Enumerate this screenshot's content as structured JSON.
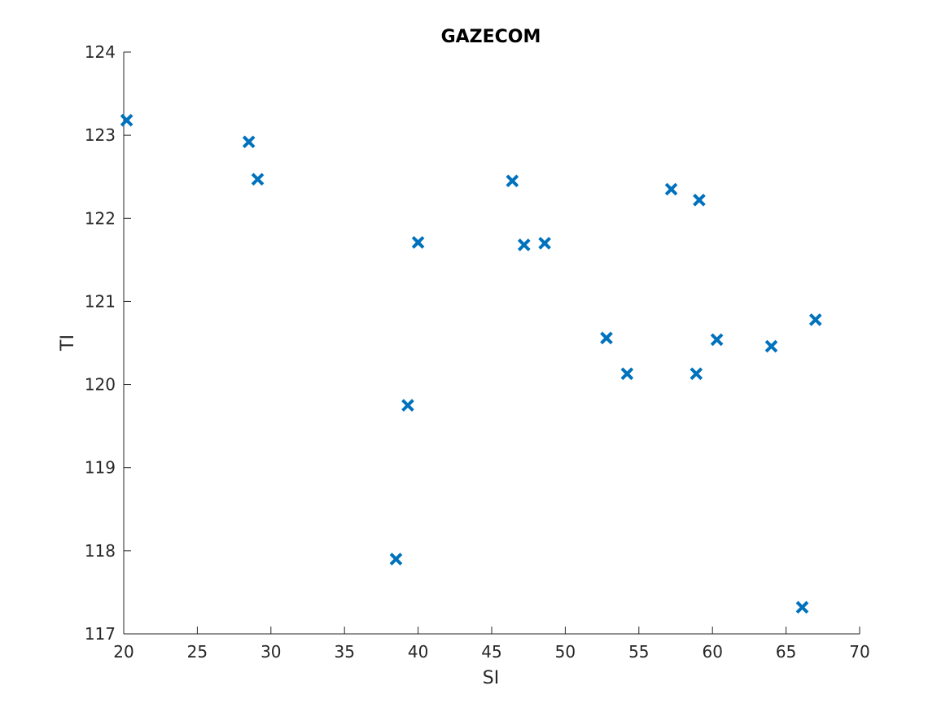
{
  "chart_data": {
    "type": "scatter",
    "title": "GAZECOM",
    "xlabel": "SI",
    "ylabel": "TI",
    "xlim": [
      20,
      70
    ],
    "ylim": [
      117,
      124
    ],
    "xticks": [
      20,
      25,
      30,
      35,
      40,
      45,
      50,
      55,
      60,
      65,
      70
    ],
    "yticks": [
      117,
      118,
      119,
      120,
      121,
      122,
      123,
      124
    ],
    "grid": false,
    "marker": "x",
    "marker_color": "#0072BD",
    "points": [
      {
        "x": 20.2,
        "y": 123.18
      },
      {
        "x": 28.5,
        "y": 122.92
      },
      {
        "x": 29.1,
        "y": 122.47
      },
      {
        "x": 38.5,
        "y": 117.9
      },
      {
        "x": 39.3,
        "y": 119.75
      },
      {
        "x": 40.0,
        "y": 121.71
      },
      {
        "x": 46.4,
        "y": 122.45
      },
      {
        "x": 47.2,
        "y": 121.68
      },
      {
        "x": 48.6,
        "y": 121.7
      },
      {
        "x": 52.8,
        "y": 120.56
      },
      {
        "x": 54.2,
        "y": 120.13
      },
      {
        "x": 57.2,
        "y": 122.35
      },
      {
        "x": 58.9,
        "y": 120.13
      },
      {
        "x": 59.1,
        "y": 122.22
      },
      {
        "x": 60.3,
        "y": 120.54
      },
      {
        "x": 64.0,
        "y": 120.46
      },
      {
        "x": 66.1,
        "y": 117.32
      },
      {
        "x": 67.0,
        "y": 120.78
      }
    ]
  }
}
